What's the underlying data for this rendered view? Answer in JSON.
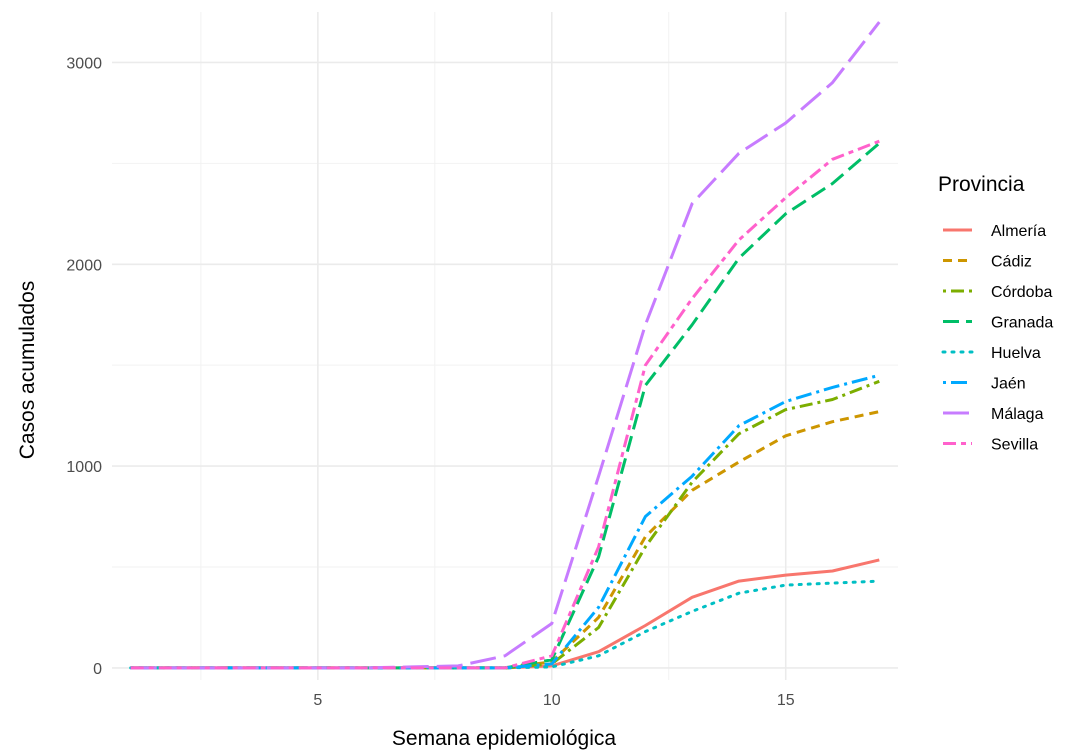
{
  "chart_data": {
    "type": "line",
    "xlabel": "Semana epidemiológica",
    "ylabel": "Casos acumulados",
    "xlim": [
      0.6,
      17.4
    ],
    "ylim": [
      -60,
      3250
    ],
    "xticks": [
      5,
      10,
      15
    ],
    "yticks": [
      0,
      1000,
      2000,
      3000
    ],
    "grid": true,
    "legend": {
      "title": "Provincia",
      "placement": "right"
    },
    "x": [
      1,
      2,
      3,
      4,
      5,
      6,
      7,
      8,
      9,
      10,
      11,
      12,
      13,
      14,
      15,
      16,
      17
    ],
    "series": [
      {
        "name": "Almería",
        "color": "#F8766D",
        "dash": "solid",
        "values": [
          0,
          0,
          0,
          0,
          0,
          0,
          0,
          0,
          0,
          10,
          80,
          210,
          350,
          430,
          460,
          480,
          535
        ]
      },
      {
        "name": "Cádiz",
        "color": "#CD9600",
        "dash": "short",
        "values": [
          0,
          0,
          0,
          0,
          0,
          0,
          0,
          0,
          0,
          30,
          250,
          650,
          880,
          1020,
          1150,
          1220,
          1270
        ]
      },
      {
        "name": "Córdoba",
        "color": "#7CAE00",
        "dash": "dotdash",
        "values": [
          0,
          0,
          0,
          0,
          0,
          0,
          0,
          0,
          0,
          20,
          200,
          600,
          920,
          1160,
          1280,
          1330,
          1420
        ]
      },
      {
        "name": "Granada",
        "color": "#00BE67",
        "dash": "long",
        "values": [
          0,
          0,
          0,
          0,
          0,
          0,
          0,
          0,
          0,
          40,
          550,
          1400,
          1700,
          2030,
          2250,
          2400,
          2600
        ]
      },
      {
        "name": "Huelva",
        "color": "#00BFC4",
        "dash": "dot",
        "values": [
          0,
          0,
          0,
          0,
          0,
          0,
          0,
          0,
          0,
          5,
          60,
          180,
          280,
          370,
          410,
          420,
          430
        ]
      },
      {
        "name": "Jaén",
        "color": "#00A9FF",
        "dash": "dotlong",
        "values": [
          0,
          0,
          0,
          0,
          0,
          0,
          0,
          0,
          0,
          20,
          300,
          750,
          950,
          1200,
          1320,
          1390,
          1450
        ]
      },
      {
        "name": "Málaga",
        "color": "#C77CFF",
        "dash": "vlong",
        "values": [
          0,
          0,
          0,
          0,
          0,
          0,
          5,
          10,
          60,
          220,
          950,
          1700,
          2300,
          2550,
          2700,
          2900,
          3200
        ]
      },
      {
        "name": "Sevilla",
        "color": "#FF61CC",
        "dash": "mixed",
        "values": [
          0,
          0,
          0,
          0,
          0,
          0,
          0,
          0,
          0,
          60,
          600,
          1500,
          1830,
          2120,
          2330,
          2520,
          2610
        ]
      }
    ]
  }
}
